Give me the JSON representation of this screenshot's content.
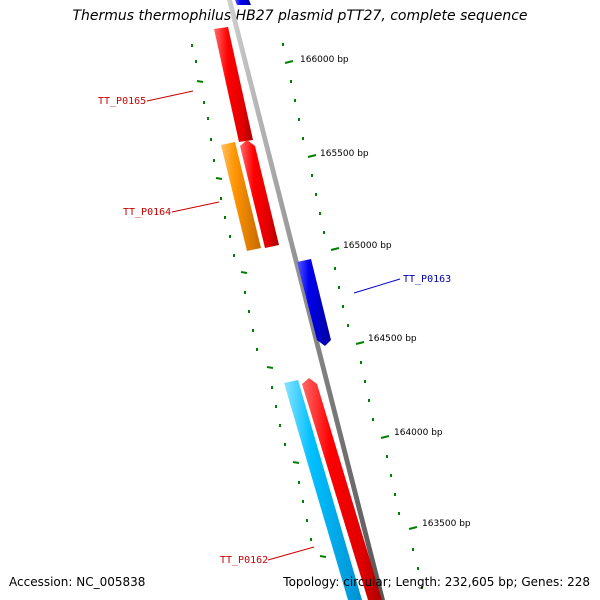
{
  "title": "Thermus thermophilus HB27 plasmid pTT27, complete sequence",
  "accession_text": "Accession: NC_005838",
  "summary_text": "Topology: circular; Length: 232,605 bp; Genes: 228",
  "bp_labels": [
    "166000 bp",
    "165500 bp",
    "165000 bp",
    "164500 bp",
    "164000 bp",
    "163500 bp"
  ],
  "genes": [
    {
      "name": "TT_P0165",
      "color": "#ff0000",
      "label_color": "#cc0000"
    },
    {
      "name": "TT_P0164",
      "color": "#ff8c00",
      "label_color": "#cc0000"
    },
    {
      "name": "TT_P0163",
      "color": "#0000ee",
      "label_color": "#0000aa"
    },
    {
      "name": "TT_P0162",
      "color": "#00bfff",
      "label_color": "#cc0000"
    }
  ],
  "colors": {
    "backbone": "#8c8c8c",
    "tick": "#008000",
    "gene_red": "#ff0000",
    "gene_orange": "#ff8c00",
    "gene_blue": "#0000ee",
    "gene_cyan": "#00bfff"
  }
}
